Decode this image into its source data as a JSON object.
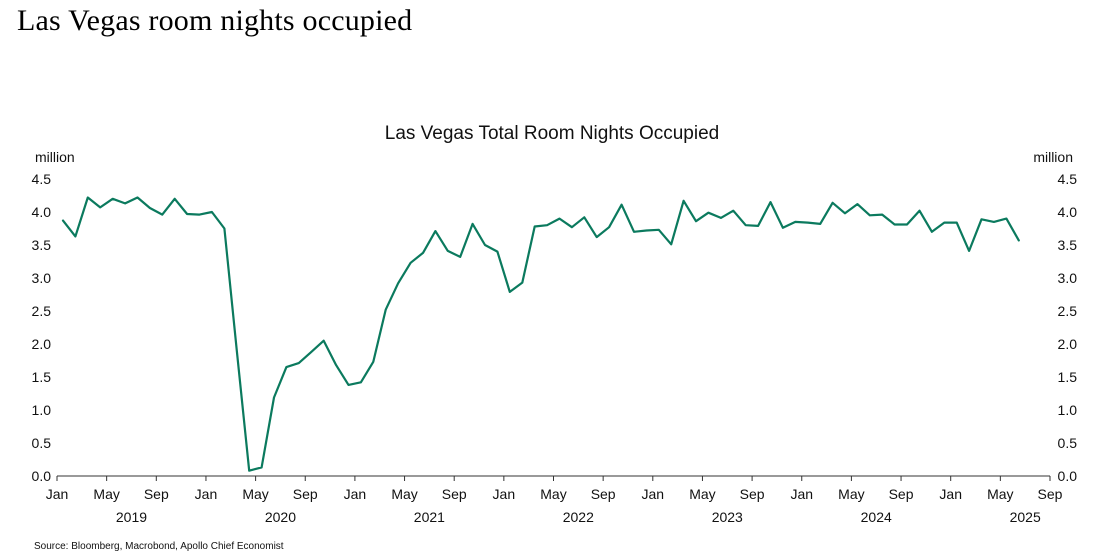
{
  "page_title": "Las Vegas room nights occupied",
  "source": "Source: Bloomberg, Macrobond, Apollo Chief Economist",
  "colors": {
    "series": "#0b7a5e",
    "axis": "#333333",
    "text": "#111111"
  },
  "chart_data": {
    "type": "line",
    "title": "Las Vegas Total Room Nights Occupied",
    "unit_left": "million",
    "unit_right": "million",
    "ylim": [
      0,
      4.5
    ],
    "yticks": [
      "0.0",
      "0.5",
      "1.0",
      "1.5",
      "2.0",
      "2.5",
      "3.0",
      "3.5",
      "4.0",
      "4.5"
    ],
    "xticks": [
      "Jan",
      "May",
      "Sep",
      "Jan",
      "May",
      "Sep",
      "Jan",
      "May",
      "Sep",
      "Jan",
      "May",
      "Sep",
      "Jan",
      "May",
      "Sep",
      "Jan",
      "May",
      "Sep",
      "Jan",
      "May",
      "Sep"
    ],
    "years": [
      "2019",
      "2020",
      "2021",
      "2022",
      "2023",
      "2024",
      "2025"
    ],
    "grid": false,
    "legend": "none",
    "series": [
      {
        "start": "2019-01",
        "values": [
          3.87,
          3.63,
          4.22,
          4.07,
          4.2,
          4.13,
          4.22,
          4.06,
          3.96,
          4.2,
          3.97,
          3.96,
          4.0,
          3.75,
          1.9,
          0.08,
          0.13,
          1.19,
          1.65,
          1.71,
          1.88,
          2.05,
          1.68,
          1.38,
          1.42,
          1.73,
          2.52,
          2.92,
          3.23,
          3.38,
          3.71,
          3.41,
          3.32,
          3.82,
          3.5,
          3.4,
          2.79,
          2.93,
          3.78,
          3.8,
          3.9,
          3.77,
          3.92,
          3.62,
          3.77,
          4.11,
          3.7,
          3.72,
          3.73,
          3.51,
          4.17,
          3.86,
          3.99,
          3.91,
          4.02,
          3.8,
          3.79,
          4.15,
          3.76,
          3.85,
          3.84,
          3.82,
          4.14,
          3.98,
          4.12,
          3.95,
          3.96,
          3.81,
          3.81,
          4.02,
          3.7,
          3.84,
          3.84,
          3.41,
          3.89,
          3.85,
          3.9,
          3.57
        ]
      }
    ]
  }
}
